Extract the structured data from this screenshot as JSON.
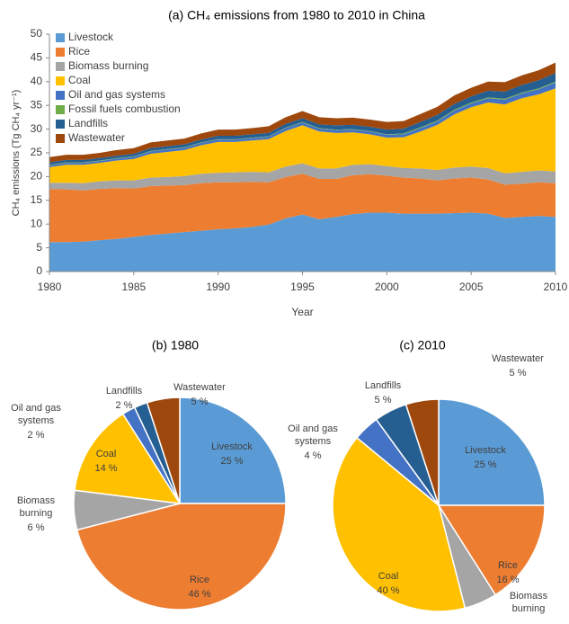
{
  "chart_data": [
    {
      "type": "stacked_area",
      "title": "(a)  CH₄ emissions from 1980 to 2010 in China",
      "x_label": "Year",
      "y_label": "CH₄ emissions (Tg CH₄ yr⁻¹)",
      "x": [
        1980,
        1981,
        1982,
        1983,
        1984,
        1985,
        1986,
        1987,
        1988,
        1989,
        1990,
        1991,
        1992,
        1993,
        1994,
        1995,
        1996,
        1997,
        1998,
        1999,
        2000,
        2001,
        2002,
        2003,
        2004,
        2005,
        2006,
        2007,
        2008,
        2009,
        2010
      ],
      "xlim": [
        1980,
        2010
      ],
      "xticks": [
        1980,
        1985,
        1990,
        1995,
        2000,
        2005,
        2010
      ],
      "ylim": [
        0,
        50
      ],
      "yticks": [
        0,
        5,
        10,
        15,
        20,
        25,
        30,
        35,
        40,
        45,
        50
      ],
      "grid": false,
      "legend": "upper left",
      "series": [
        {
          "name": "Livestock",
          "color": "#5b9bd5",
          "values": [
            6.2,
            6.2,
            6.3,
            6.6,
            6.9,
            7.3,
            7.7,
            8.0,
            8.3,
            8.6,
            8.9,
            9.1,
            9.4,
            9.9,
            11.2,
            12.0,
            11.0,
            11.5,
            12.1,
            12.4,
            12.4,
            12.2,
            12.2,
            12.2,
            12.3,
            12.4,
            12.2,
            11.3,
            11.5,
            11.7,
            11.5
          ]
        },
        {
          "name": "Rice",
          "color": "#ed7d31",
          "values": [
            11.2,
            11.1,
            10.8,
            10.8,
            10.7,
            10.2,
            10.3,
            10.1,
            9.9,
            10.0,
            9.9,
            9.7,
            9.5,
            8.9,
            8.7,
            8.6,
            8.5,
            8.0,
            8.2,
            8.1,
            7.8,
            7.6,
            7.4,
            7.0,
            7.3,
            7.4,
            7.2,
            7.0,
            7.0,
            7.1,
            7.1
          ]
        },
        {
          "name": "Biomass burning",
          "color": "#a5a5a5",
          "values": [
            1.3,
            1.4,
            1.5,
            1.6,
            1.6,
            1.7,
            1.8,
            1.8,
            1.9,
            2.0,
            2.0,
            2.1,
            2.1,
            2.1,
            2.2,
            2.2,
            2.2,
            2.2,
            2.2,
            2.1,
            2.0,
            2.0,
            2.1,
            2.2,
            2.3,
            2.3,
            2.4,
            2.4,
            2.5,
            2.5,
            2.5
          ]
        },
        {
          "name": "Coal",
          "color": "#ffc000",
          "values": [
            3.3,
            3.8,
            3.9,
            3.9,
            4.2,
            4.5,
            5.0,
            5.3,
            5.5,
            6.0,
            6.5,
            6.4,
            6.6,
            7.0,
            7.5,
            8.0,
            7.8,
            7.5,
            6.8,
            6.3,
            6.0,
            6.5,
            7.8,
            9.5,
            11.2,
            12.5,
            13.8,
            14.5,
            15.5,
            16.0,
            17.5
          ]
        },
        {
          "name": "Oil and gas systems",
          "color": "#4472c4",
          "values": [
            0.4,
            0.4,
            0.4,
            0.4,
            0.4,
            0.5,
            0.5,
            0.5,
            0.5,
            0.5,
            0.5,
            0.5,
            0.5,
            0.5,
            0.6,
            0.6,
            0.6,
            0.6,
            0.6,
            0.6,
            0.6,
            0.6,
            0.7,
            0.7,
            0.8,
            0.8,
            0.9,
            1.0,
            1.0,
            1.1,
            1.2
          ]
        },
        {
          "name": "Fossil fuels combustion",
          "color": "#70ad47",
          "values": [
            0.1,
            0.1,
            0.1,
            0.1,
            0.1,
            0.1,
            0.1,
            0.1,
            0.1,
            0.1,
            0.1,
            0.1,
            0.1,
            0.1,
            0.1,
            0.1,
            0.1,
            0.1,
            0.1,
            0.1,
            0.1,
            0.2,
            0.2,
            0.2,
            0.2,
            0.2,
            0.2,
            0.2,
            0.2,
            0.2,
            0.2
          ]
        },
        {
          "name": "Landfills",
          "color": "#255e91",
          "values": [
            0.5,
            0.5,
            0.5,
            0.5,
            0.5,
            0.5,
            0.6,
            0.6,
            0.6,
            0.6,
            0.7,
            0.7,
            0.7,
            0.7,
            0.8,
            0.8,
            0.8,
            0.9,
            0.9,
            0.9,
            1.0,
            1.0,
            1.1,
            1.2,
            1.2,
            1.3,
            1.4,
            1.5,
            1.6,
            1.7,
            1.8
          ]
        },
        {
          "name": "Wastewater",
          "color": "#9e480e",
          "values": [
            1.1,
            1.1,
            1.1,
            1.1,
            1.2,
            1.2,
            1.2,
            1.2,
            1.2,
            1.3,
            1.3,
            1.3,
            1.3,
            1.4,
            1.4,
            1.5,
            1.5,
            1.5,
            1.5,
            1.5,
            1.6,
            1.6,
            1.7,
            1.7,
            1.8,
            1.8,
            1.9,
            2.0,
            2.0,
            2.1,
            2.2
          ]
        }
      ]
    },
    {
      "type": "pie",
      "title": "(b)  1980",
      "categories": [
        "Livestock",
        "Rice",
        "Biomass burning",
        "Coal",
        "Oil and gas systems",
        "Landfills",
        "Wastewater"
      ],
      "values": [
        25,
        46,
        6,
        14,
        2,
        2,
        5
      ],
      "value_labels": [
        "25 %",
        "46 %",
        "6 %",
        "14 %",
        "2 %",
        "2 %",
        "5 %"
      ],
      "colors": [
        "#5b9bd5",
        "#ed7d31",
        "#a5a5a5",
        "#ffc000",
        "#4472c4",
        "#255e91",
        "#9e480e"
      ]
    },
    {
      "type": "pie",
      "title": "(c)  2010",
      "categories": [
        "Livestock",
        "Rice",
        "Biomass burning",
        "Coal",
        "Oil and gas systems",
        "Landfills",
        "Wastewater"
      ],
      "values": [
        25,
        16,
        5,
        40,
        4,
        5,
        5
      ],
      "value_labels": [
        "25 %",
        "16 %",
        null,
        "40 %",
        "4 %",
        "5 %",
        "5 %"
      ],
      "colors": [
        "#5b9bd5",
        "#ed7d31",
        "#a5a5a5",
        "#ffc000",
        "#4472c4",
        "#255e91",
        "#9e480e"
      ]
    }
  ]
}
